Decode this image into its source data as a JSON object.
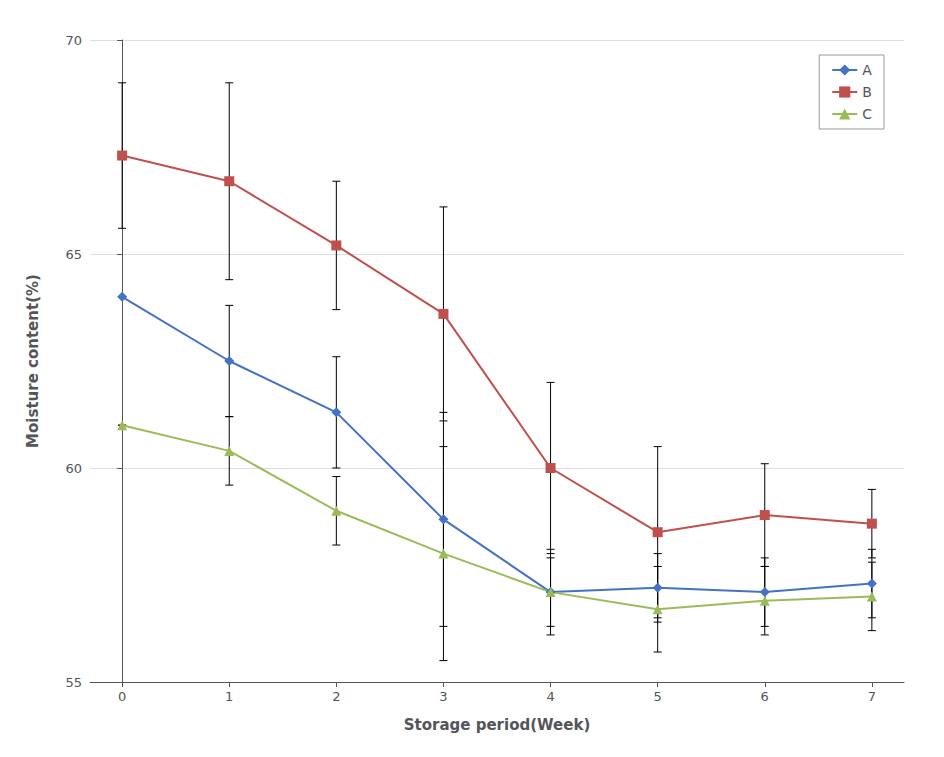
{
  "chart_data": {
    "type": "line",
    "xlabel": "Storage period(Week)",
    "ylabel": "Moisture content(%)",
    "x": [
      0,
      1,
      2,
      3,
      4,
      5,
      6,
      7
    ],
    "series": [
      {
        "name": "A",
        "color": "#4472C4",
        "marker": "diamond",
        "values": [
          64.0,
          62.5,
          61.3,
          58.8,
          57.1,
          57.2,
          57.1,
          57.3
        ],
        "errors": [
          0.0,
          1.3,
          1.3,
          2.5,
          1.0,
          0.8,
          0.8,
          0.8
        ]
      },
      {
        "name": "B",
        "color": "#C0504D",
        "marker": "square",
        "values": [
          67.3,
          66.7,
          65.2,
          63.6,
          60.0,
          58.5,
          58.9,
          58.7
        ],
        "errors": [
          1.7,
          2.3,
          1.5,
          2.5,
          2.0,
          2.0,
          1.2,
          0.8
        ]
      },
      {
        "name": "C",
        "color": "#9BBB59",
        "marker": "triangle",
        "values": [
          61.0,
          60.4,
          59.0,
          58.0,
          57.1,
          56.7,
          56.9,
          57.0
        ],
        "errors": [
          0.0,
          0.8,
          0.8,
          2.5,
          0.8,
          1.0,
          0.8,
          0.8
        ]
      }
    ],
    "xlim": [
      -0.3,
      7.3
    ],
    "xticks": [
      0,
      1,
      2,
      3,
      4,
      5,
      6,
      7
    ],
    "ylim": [
      55,
      70
    ],
    "yticks": [
      55,
      60,
      65,
      70
    ],
    "grid": true,
    "legend": "upper right"
  }
}
